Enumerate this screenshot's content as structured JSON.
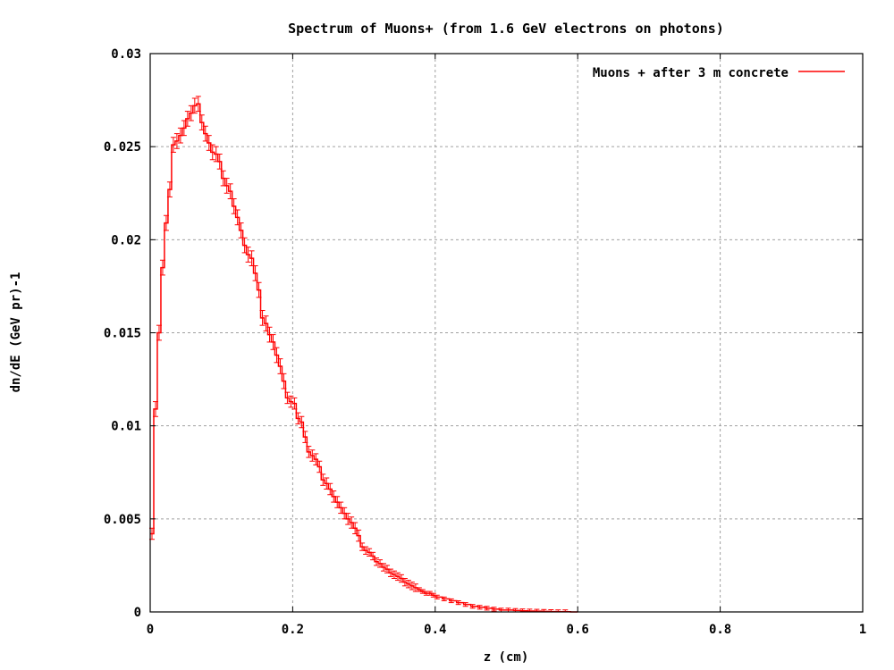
{
  "chart_data": {
    "type": "line",
    "title": "Spectrum of Muons+ (from 1.6 GeV electrons on photons)",
    "xlabel": "z (cm)",
    "ylabel": "dn/dE (GeV pr)-1",
    "xlim": [
      0,
      1
    ],
    "ylim": [
      0,
      0.03
    ],
    "x_ticks": [
      "0",
      "0.2",
      "0.4",
      "0.6",
      "0.8",
      "1"
    ],
    "x_tick_values": [
      0,
      0.2,
      0.4,
      0.6,
      0.8,
      1
    ],
    "y_ticks": [
      "0",
      "0.005",
      "0.01",
      "0.015",
      "0.02",
      "0.025",
      "0.03"
    ],
    "y_tick_values": [
      0,
      0.005,
      0.01,
      0.015,
      0.02,
      0.025,
      0.03
    ],
    "grid": true,
    "legend_position": "top-right",
    "series": [
      {
        "name": "Muons + after 3 m concrete",
        "color": "#ff0000",
        "style": "histogram-steps-with-error-bars",
        "x": [
          0,
          0.005,
          0.01,
          0.015,
          0.02,
          0.025,
          0.03,
          0.035,
          0.04,
          0.045,
          0.05,
          0.055,
          0.06,
          0.065,
          0.07,
          0.075,
          0.08,
          0.085,
          0.09,
          0.095,
          0.1,
          0.105,
          0.11,
          0.115,
          0.12,
          0.125,
          0.13,
          0.135,
          0.14,
          0.145,
          0.15,
          0.155,
          0.16,
          0.165,
          0.17,
          0.175,
          0.18,
          0.185,
          0.19,
          0.195,
          0.2,
          0.205,
          0.21,
          0.215,
          0.22,
          0.225,
          0.23,
          0.235,
          0.24,
          0.245,
          0.25,
          0.255,
          0.26,
          0.265,
          0.27,
          0.275,
          0.28,
          0.285,
          0.29,
          0.295,
          0.3,
          0.305,
          0.31,
          0.315,
          0.32,
          0.325,
          0.33,
          0.335,
          0.34,
          0.345,
          0.35,
          0.355,
          0.36,
          0.365,
          0.37,
          0.375,
          0.38,
          0.385,
          0.39,
          0.395,
          0.4,
          0.41,
          0.42,
          0.43,
          0.44,
          0.45,
          0.46,
          0.47,
          0.48,
          0.49,
          0.5,
          0.51,
          0.52,
          0.53,
          0.54,
          0.55,
          0.56,
          0.57,
          0.58,
          0.59
        ],
        "values": [
          0.0042,
          0.0109,
          0.015,
          0.0185,
          0.0209,
          0.0227,
          0.0251,
          0.0253,
          0.0256,
          0.026,
          0.0265,
          0.0268,
          0.0272,
          0.0273,
          0.0263,
          0.0257,
          0.0252,
          0.0247,
          0.0246,
          0.0242,
          0.0233,
          0.0229,
          0.0226,
          0.0218,
          0.0212,
          0.0205,
          0.0197,
          0.0192,
          0.019,
          0.0182,
          0.0173,
          0.0158,
          0.0155,
          0.0149,
          0.0145,
          0.0138,
          0.0132,
          0.0124,
          0.0115,
          0.0113,
          0.0112,
          0.0104,
          0.0102,
          0.0094,
          0.0086,
          0.0084,
          0.0082,
          0.0078,
          0.0071,
          0.0069,
          0.0066,
          0.0062,
          0.0059,
          0.0056,
          0.0053,
          0.005,
          0.0048,
          0.0045,
          0.0041,
          0.0035,
          0.0033,
          0.0032,
          0.003,
          0.0027,
          0.0026,
          0.0024,
          0.0023,
          0.0021,
          0.002,
          0.0019,
          0.0018,
          0.0016,
          0.0015,
          0.0014,
          0.0013,
          0.0012,
          0.0011,
          0.001,
          0.001,
          0.0009,
          0.0008,
          0.0007,
          0.0006,
          0.0005,
          0.0004,
          0.0003,
          0.00025,
          0.0002,
          0.00015,
          0.0001,
          0.0001,
          8e-05,
          6e-05,
          5e-05,
          4e-05,
          3e-05,
          2e-05,
          1e-05,
          1e-05,
          0
        ],
        "errors": [
          0.0003,
          0.0004,
          0.0004,
          0.0004,
          0.0004,
          0.0004,
          0.0004,
          0.0004,
          0.0004,
          0.0004,
          0.0004,
          0.0004,
          0.0004,
          0.0004,
          0.0004,
          0.0004,
          0.0004,
          0.0004,
          0.0004,
          0.0004,
          0.0004,
          0.0004,
          0.0004,
          0.0004,
          0.0004,
          0.0004,
          0.0004,
          0.0004,
          0.0004,
          0.0004,
          0.0004,
          0.0004,
          0.0004,
          0.0004,
          0.0004,
          0.0004,
          0.0004,
          0.0004,
          0.0003,
          0.0003,
          0.0003,
          0.0003,
          0.0003,
          0.0003,
          0.0003,
          0.0003,
          0.0003,
          0.0003,
          0.0003,
          0.0003,
          0.0003,
          0.0003,
          0.0003,
          0.0003,
          0.0003,
          0.0003,
          0.0003,
          0.0003,
          0.0003,
          0.0002,
          0.0002,
          0.0002,
          0.0002,
          0.0002,
          0.0002,
          0.0002,
          0.0002,
          0.0002,
          0.0002,
          0.0002,
          0.0002,
          0.0002,
          0.0002,
          0.0002,
          0.0002,
          0.0001,
          0.0001,
          0.0001,
          0.0001,
          0.0001,
          0.0001,
          0.0001,
          0.0001,
          0.0001,
          0.0001,
          0.0001,
          0.0001,
          0.0001,
          0.0001,
          0.0001,
          0.0001,
          0.0001,
          0.0001,
          0.0001,
          0.0001,
          0.0001,
          0.0001,
          0.0001,
          0.0001,
          0.0001
        ]
      }
    ]
  }
}
